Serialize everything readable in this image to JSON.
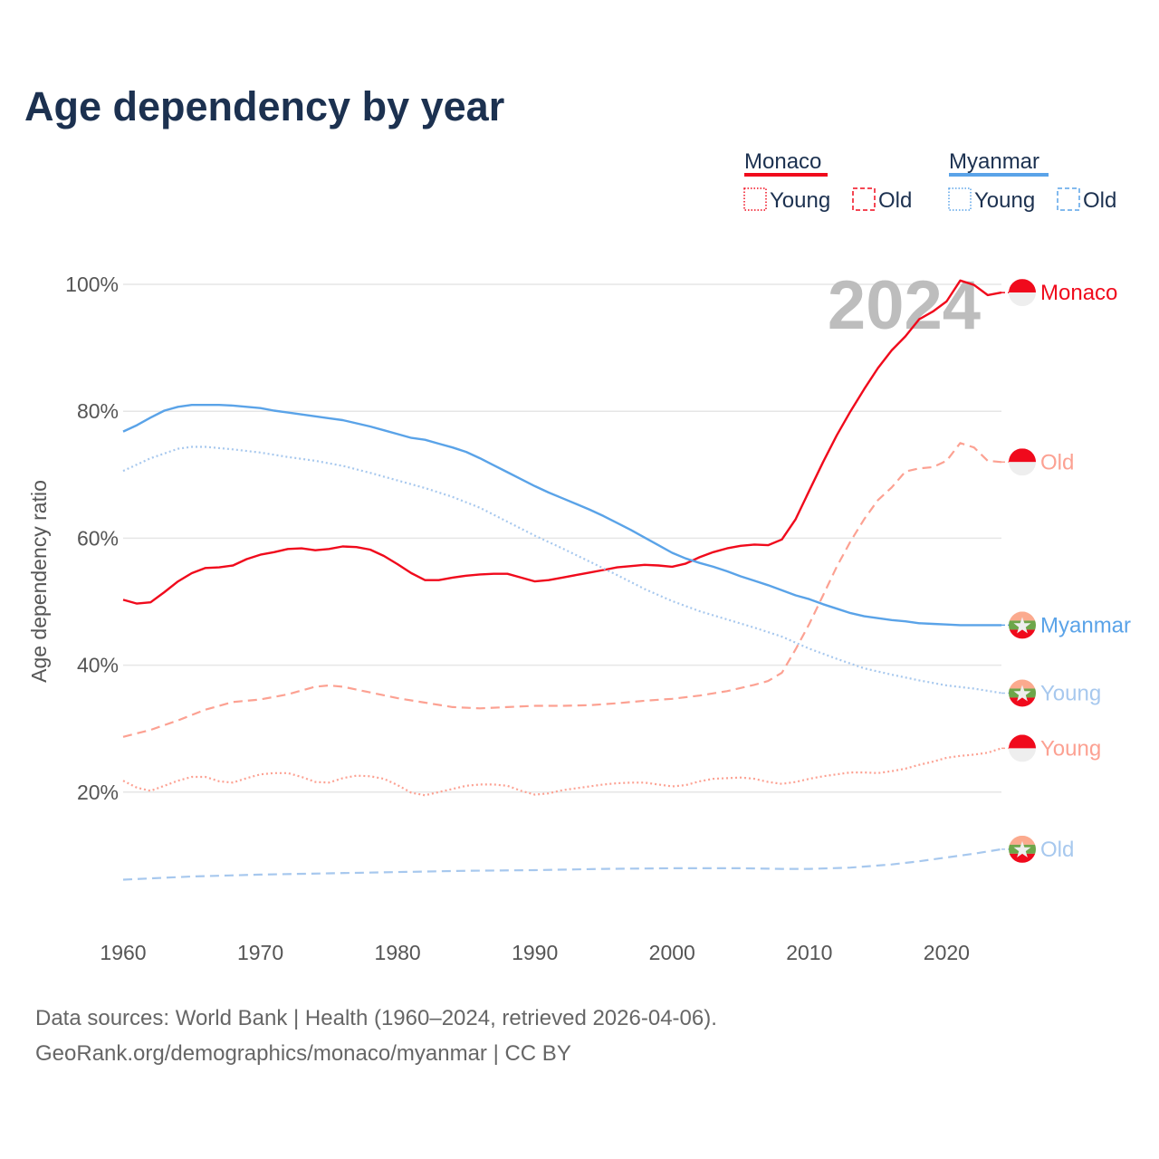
{
  "chart_data": {
    "type": "line",
    "title": "Age dependency by year",
    "ylabel": "Age dependency ratio",
    "xlabel": "",
    "xlim": [
      1960,
      2024
    ],
    "ylim": [
      0,
      100
    ],
    "x_ticks": [
      1960,
      1970,
      1980,
      1990,
      2000,
      2010,
      2020
    ],
    "x_tick_labels": [
      "1960",
      "1970",
      "1980",
      "1990",
      "2000",
      "2010",
      "2020"
    ],
    "y_ticks": [
      20,
      40,
      60,
      80,
      100
    ],
    "y_tick_labels": [
      "20%",
      "40%",
      "60%",
      "80%",
      "100%"
    ],
    "grid": true,
    "year_watermark": "2024",
    "legend": {
      "placement": "top-right",
      "groups": [
        {
          "country": "Monaco",
          "color": "#f00a1c",
          "items": [
            "Young",
            "Old"
          ]
        },
        {
          "country": "Myanmar",
          "color": "#5aa3e8",
          "items": [
            "Young",
            "Old"
          ]
        }
      ]
    },
    "series": [
      {
        "name": "Monaco",
        "label": "Monaco",
        "country": "monaco",
        "style": "solid",
        "color": "#f00a1c",
        "x": [
          1960,
          1961,
          1962,
          1963,
          1964,
          1965,
          1966,
          1967,
          1968,
          1969,
          1970,
          1971,
          1972,
          1973,
          1974,
          1975,
          1976,
          1977,
          1978,
          1979,
          1980,
          1981,
          1982,
          1983,
          1984,
          1985,
          1986,
          1987,
          1988,
          1989,
          1990,
          1991,
          1992,
          1993,
          1994,
          1995,
          1996,
          1997,
          1998,
          1999,
          2000,
          2001,
          2002,
          2003,
          2004,
          2005,
          2006,
          2007,
          2008,
          2009,
          2010,
          2011,
          2012,
          2013,
          2014,
          2015,
          2016,
          2017,
          2018,
          2019,
          2020,
          2021,
          2022,
          2023,
          2024
        ],
        "y": [
          50.3,
          49.7,
          49.9,
          51.5,
          53.2,
          54.5,
          55.3,
          55.4,
          55.7,
          56.7,
          57.4,
          57.8,
          58.3,
          58.4,
          58.1,
          58.3,
          58.7,
          58.6,
          58.2,
          57.2,
          55.9,
          54.5,
          53.4,
          53.4,
          53.8,
          54.1,
          54.3,
          54.4,
          54.4,
          53.8,
          53.2,
          53.4,
          53.8,
          54.2,
          54.6,
          55.0,
          55.4,
          55.6,
          55.8,
          55.7,
          55.5,
          56.0,
          57.0,
          57.8,
          58.4,
          58.8,
          59.0,
          58.9,
          59.8,
          63.0,
          67.5,
          72.0,
          76.2,
          80.0,
          83.5,
          86.8,
          89.6,
          91.8,
          94.5,
          95.7,
          97.3,
          100.6,
          99.9,
          98.3,
          98.7
        ]
      },
      {
        "name": "Monaco Old",
        "label": "Old",
        "country": "monaco",
        "style": "dashed",
        "color": "#fca192",
        "x": [
          1960,
          1962,
          1964,
          1966,
          1968,
          1970,
          1972,
          1974,
          1975,
          1976,
          1978,
          1980,
          1982,
          1984,
          1986,
          1988,
          1990,
          1992,
          1994,
          1996,
          1998,
          2000,
          2002,
          2004,
          2006,
          2007,
          2008,
          2009,
          2010,
          2011,
          2012,
          2013,
          2014,
          2015,
          2016,
          2017,
          2018,
          2019,
          2020,
          2021,
          2022,
          2023,
          2024
        ],
        "y": [
          28.7,
          29.8,
          31.3,
          33.0,
          34.2,
          34.6,
          35.4,
          36.6,
          36.8,
          36.6,
          35.7,
          34.8,
          34.1,
          33.4,
          33.2,
          33.4,
          33.6,
          33.6,
          33.7,
          34.0,
          34.4,
          34.7,
          35.2,
          35.9,
          36.9,
          37.5,
          38.8,
          42.5,
          46.5,
          51.0,
          55.5,
          59.5,
          63.0,
          66.0,
          68.0,
          70.5,
          71.0,
          71.2,
          72.2,
          75.0,
          74.3,
          72.2,
          72.0
        ]
      },
      {
        "name": "Monaco Young",
        "label": "Young",
        "country": "monaco",
        "style": "dotted",
        "color": "#fca192",
        "x": [
          1960,
          1961,
          1962,
          1963,
          1964,
          1965,
          1966,
          1967,
          1968,
          1969,
          1970,
          1971,
          1972,
          1973,
          1974,
          1975,
          1976,
          1977,
          1978,
          1979,
          1980,
          1981,
          1982,
          1983,
          1984,
          1985,
          1986,
          1987,
          1988,
          1989,
          1990,
          1991,
          1992,
          1993,
          1994,
          1995,
          1996,
          1997,
          1998,
          1999,
          2000,
          2001,
          2002,
          2003,
          2004,
          2005,
          2006,
          2007,
          2008,
          2009,
          2010,
          2011,
          2012,
          2013,
          2014,
          2015,
          2016,
          2017,
          2018,
          2019,
          2020,
          2021,
          2022,
          2023,
          2024
        ],
        "y": [
          21.8,
          20.7,
          20.2,
          21.0,
          21.8,
          22.4,
          22.4,
          21.7,
          21.5,
          22.2,
          22.8,
          23.0,
          23.0,
          22.4,
          21.6,
          21.5,
          22.2,
          22.6,
          22.5,
          22.1,
          21.1,
          19.9,
          19.5,
          20.0,
          20.5,
          21.0,
          21.2,
          21.2,
          21.0,
          20.2,
          19.6,
          19.8,
          20.3,
          20.6,
          20.9,
          21.2,
          21.4,
          21.5,
          21.5,
          21.2,
          20.9,
          21.1,
          21.7,
          22.1,
          22.2,
          22.3,
          22.1,
          21.6,
          21.3,
          21.6,
          22.1,
          22.5,
          22.8,
          23.1,
          23.1,
          23.0,
          23.3,
          23.7,
          24.3,
          24.8,
          25.4,
          25.7,
          25.9,
          26.2,
          26.9
        ]
      },
      {
        "name": "Myanmar",
        "label": "Myanmar",
        "country": "myanmar",
        "style": "solid",
        "color": "#5aa3e8",
        "x": [
          1960,
          1961,
          1962,
          1963,
          1964,
          1965,
          1966,
          1967,
          1968,
          1969,
          1970,
          1971,
          1972,
          1973,
          1974,
          1975,
          1976,
          1977,
          1978,
          1979,
          1980,
          1981,
          1982,
          1983,
          1984,
          1985,
          1986,
          1987,
          1988,
          1989,
          1990,
          1991,
          1992,
          1993,
          1994,
          1995,
          1996,
          1997,
          1998,
          1999,
          2000,
          2001,
          2002,
          2003,
          2004,
          2005,
          2006,
          2007,
          2008,
          2009,
          2010,
          2011,
          2012,
          2013,
          2014,
          2015,
          2016,
          2017,
          2018,
          2019,
          2020,
          2021,
          2022,
          2023,
          2024
        ],
        "y": [
          76.8,
          77.8,
          79.0,
          80.1,
          80.7,
          81.0,
          81.0,
          81.0,
          80.9,
          80.7,
          80.5,
          80.1,
          79.8,
          79.5,
          79.2,
          78.9,
          78.6,
          78.1,
          77.6,
          77.0,
          76.4,
          75.8,
          75.5,
          74.9,
          74.3,
          73.6,
          72.6,
          71.5,
          70.4,
          69.3,
          68.2,
          67.2,
          66.3,
          65.4,
          64.5,
          63.5,
          62.4,
          61.3,
          60.1,
          58.9,
          57.7,
          56.8,
          56.1,
          55.5,
          54.8,
          54.0,
          53.3,
          52.6,
          51.8,
          51.0,
          50.4,
          49.6,
          48.9,
          48.2,
          47.7,
          47.4,
          47.1,
          46.9,
          46.6,
          46.5,
          46.4,
          46.3,
          46.3,
          46.3,
          46.3
        ]
      },
      {
        "name": "Myanmar Young",
        "label": "Young",
        "country": "myanmar",
        "style": "dotted",
        "color": "#a7c8ee",
        "x": [
          1960,
          1962,
          1964,
          1965,
          1966,
          1968,
          1970,
          1972,
          1974,
          1976,
          1978,
          1980,
          1982,
          1984,
          1986,
          1988,
          1990,
          1992,
          1994,
          1996,
          1998,
          2000,
          2002,
          2004,
          2006,
          2008,
          2010,
          2012,
          2014,
          2016,
          2018,
          2020,
          2022,
          2024
        ],
        "y": [
          70.6,
          72.6,
          74.1,
          74.4,
          74.4,
          74.0,
          73.5,
          72.8,
          72.2,
          71.4,
          70.3,
          69.1,
          67.9,
          66.5,
          64.8,
          62.6,
          60.4,
          58.4,
          56.3,
          54.2,
          52.0,
          50.1,
          48.5,
          47.2,
          45.9,
          44.5,
          42.6,
          41.0,
          39.5,
          38.5,
          37.6,
          36.8,
          36.3,
          35.6
        ]
      },
      {
        "name": "Myanmar Old",
        "label": "Old",
        "country": "myanmar",
        "style": "dashed",
        "color": "#a7c8ee",
        "x": [
          1960,
          1965,
          1970,
          1975,
          1980,
          1985,
          1990,
          1995,
          2000,
          2005,
          2008,
          2010,
          2013,
          2016,
          2018,
          2020,
          2022,
          2024
        ],
        "y": [
          6.2,
          6.7,
          7.0,
          7.2,
          7.4,
          7.6,
          7.7,
          7.9,
          8.0,
          8.0,
          7.9,
          7.9,
          8.1,
          8.6,
          9.1,
          9.7,
          10.3,
          11.0
        ]
      }
    ]
  },
  "footer": {
    "line1": "Data sources: World Bank | Health (1960–2024, retrieved 2026-04-06).",
    "line2": "GeoRank.org/demographics/monaco/myanmar | CC BY"
  }
}
